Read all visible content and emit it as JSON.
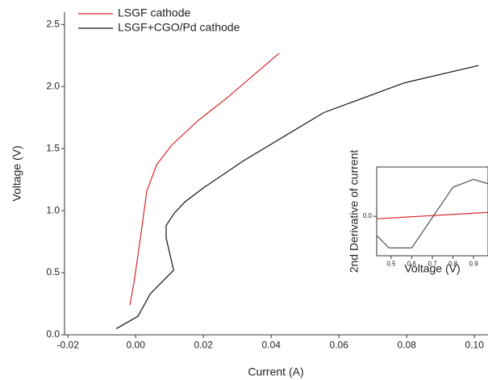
{
  "chart_data": [
    {
      "type": "line",
      "xlabel": "Current (A)",
      "ylabel": "Voltage (V)",
      "xlim": [
        -0.021,
        0.104
      ],
      "ylim": [
        0,
        2.6
      ],
      "xticks": [
        -0.02,
        {
          "value": 0,
          "label": "0.00"
        },
        0.02,
        0.04,
        0.06,
        0.08,
        {
          "value": 0.1,
          "label": "0.10"
        }
      ],
      "yticks": [
        {
          "value": 0,
          "label": "0.0"
        },
        0.5,
        {
          "value": 1,
          "label": "1.0"
        },
        1.5,
        {
          "value": 2,
          "label": "2.0"
        },
        2.5
      ],
      "legend": "upper left",
      "series": [
        {
          "name": "LSGF cathode",
          "color": "#d62728",
          "x": [
            -0.0017,
            -0.0005,
            0.0015,
            0.0033,
            0.0062,
            0.0107,
            0.0186,
            0.027,
            0.0424
          ],
          "values": [
            0.24,
            0.42,
            0.8,
            1.16,
            1.37,
            1.53,
            1.73,
            1.91,
            2.27
          ]
        },
        {
          "name": "LSGF+CGO/Pd cathode",
          "color": "#111111",
          "x": [
            -0.0057,
            0.0007,
            0.0043,
            0.009,
            0.0112,
            0.009,
            0.009,
            0.0114,
            0.0145,
            0.0198,
            0.0317,
            0.0555,
            0.0793,
            0.1012
          ],
          "values": [
            0.05,
            0.15,
            0.33,
            0.46,
            0.52,
            0.78,
            0.88,
            0.98,
            1.07,
            1.18,
            1.4,
            1.79,
            2.03,
            2.17
          ]
        }
      ]
    },
    {
      "type": "line",
      "xlabel": "Voltage (V)",
      "ylabel": "2nd Derivative of current",
      "xlim": [
        0.43,
        0.97
      ],
      "ylim": [
        -0.8,
        1
      ],
      "xticks": [
        0.5,
        0.6,
        0.7,
        0.8,
        0.9
      ],
      "yticks": [
        {
          "value": 0,
          "label": "0.0"
        }
      ],
      "series": [
        {
          "color": "#d62728",
          "x": [
            0.43,
            0.97
          ],
          "values": [
            -0.05,
            0.08
          ]
        },
        {
          "color": "#555555",
          "x": [
            0.43,
            0.49,
            0.6,
            0.8,
            0.9,
            0.97
          ],
          "values": [
            -0.39,
            -0.64,
            -0.64,
            0.59,
            0.75,
            0.66
          ]
        }
      ]
    }
  ]
}
